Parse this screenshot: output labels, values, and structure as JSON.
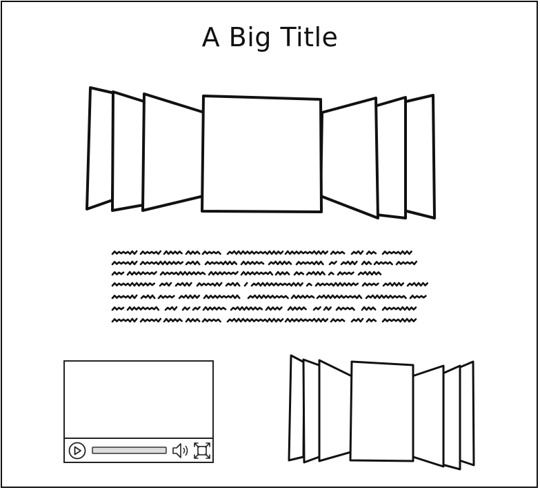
{
  "page": {
    "title": "A Big Title"
  },
  "video_player": {
    "play_icon": "play-icon",
    "progress": 0,
    "volume_icon": "volume-icon",
    "fullscreen_icon": "fullscreen-icon"
  },
  "body_text": {
    "line_count": 7,
    "style": "scribble-placeholder"
  },
  "colors": {
    "ink": "#111111",
    "progress_fill": "#dddddd"
  }
}
